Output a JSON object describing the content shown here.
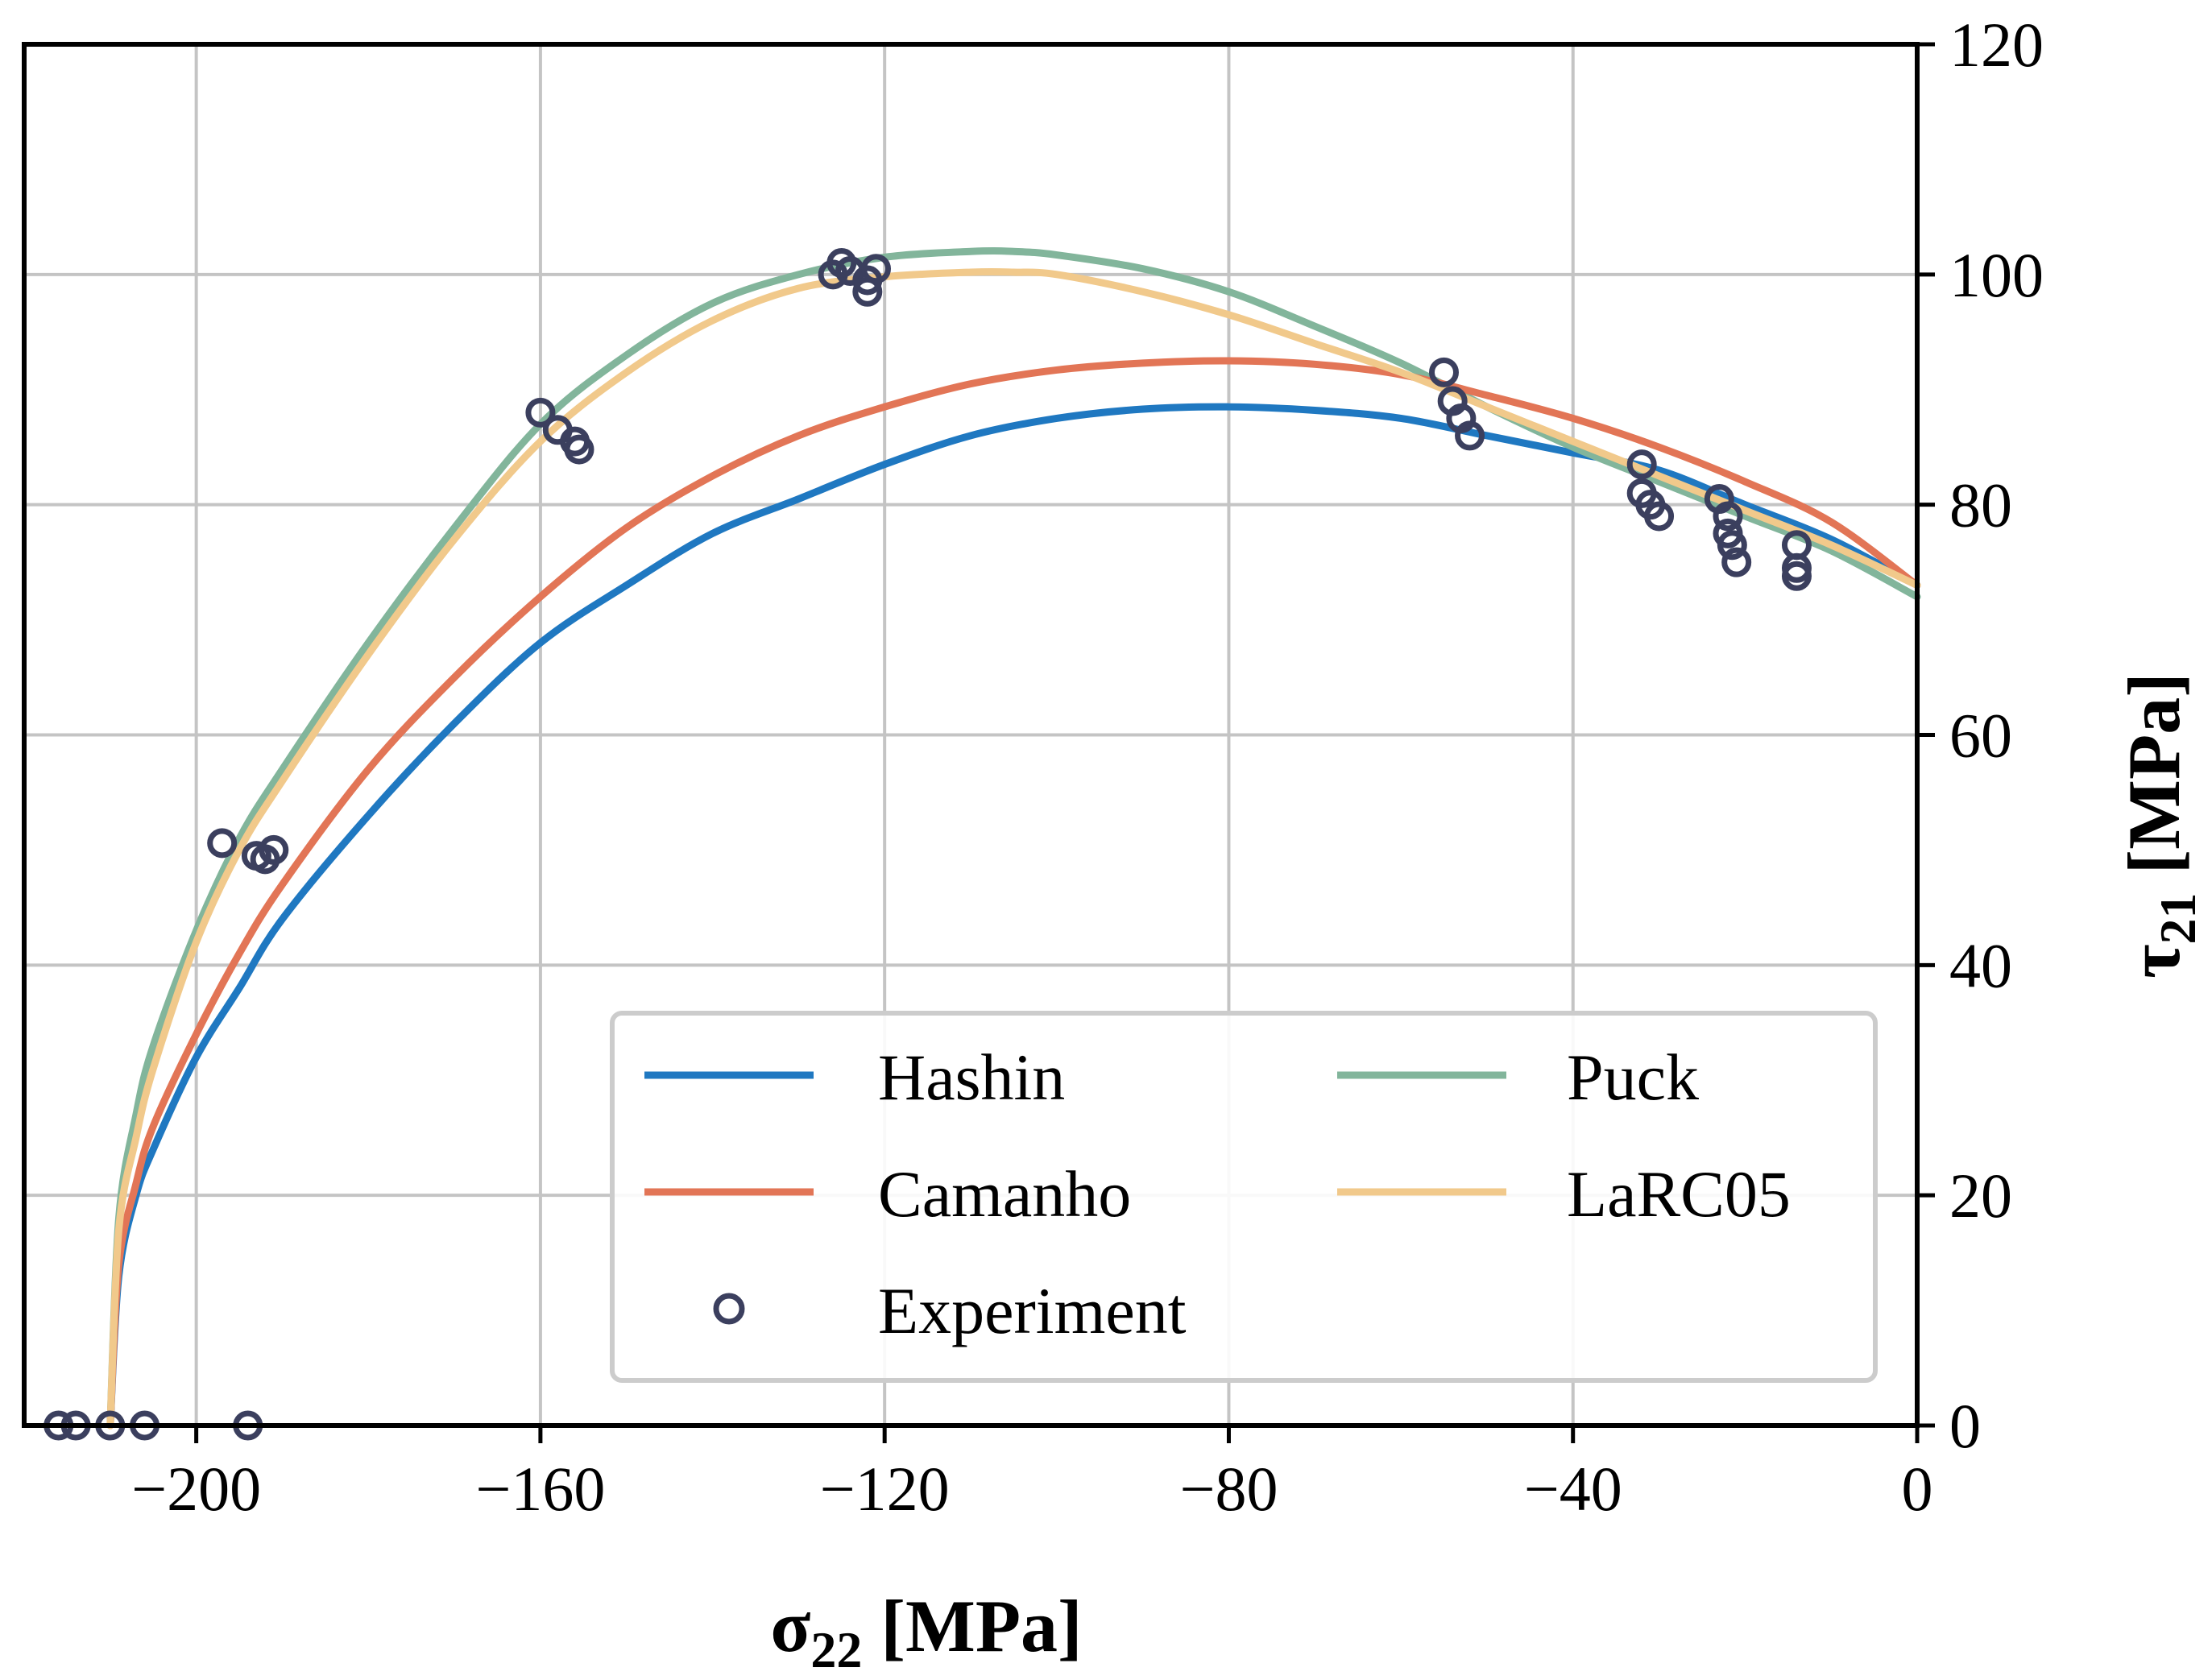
{
  "chart_data": {
    "type": "line",
    "xlabel": "σ",
    "xlabel_sub": "22",
    "xlabel_unit": " [MPa]",
    "ylabel": "τ",
    "ylabel_sub": "21",
    "ylabel_unit": " [MPa]",
    "xlim": [
      -220,
      0
    ],
    "ylim": [
      0,
      120
    ],
    "xticks": [
      -200,
      -160,
      -120,
      -80,
      -40,
      0
    ],
    "xtick_labels": [
      "−200",
      "−160",
      "−120",
      "−80",
      "−40",
      "0"
    ],
    "yticks": [
      0,
      20,
      40,
      60,
      80,
      100,
      120
    ],
    "ytick_labels": [
      "0",
      "20",
      "40",
      "60",
      "80",
      "100",
      "120"
    ],
    "y_axis_side": "right",
    "grid": true,
    "legend_position": "lower-right",
    "legend_columns": 2,
    "series": [
      {
        "name": "Hashin",
        "color": "#1f78c1",
        "x": [
          -210,
          -209,
          -207,
          -205,
          -200,
          -195,
          -190,
          -180,
          -170,
          -160,
          -150,
          -140,
          -130,
          -120,
          -110,
          -100,
          -90,
          -80,
          -70,
          -60,
          -50,
          -40,
          -30,
          -20,
          -10,
          0
        ],
        "y": [
          0,
          13,
          20,
          24,
          32,
          38,
          44,
          53,
          61,
          68,
          73,
          77.5,
          80.5,
          83.5,
          86,
          87.5,
          88.3,
          88.5,
          88.2,
          87.5,
          86,
          84.5,
          83,
          80,
          77,
          73
        ]
      },
      {
        "name": "Puck",
        "color": "#82b59b",
        "x": [
          -210,
          -209,
          -207,
          -205,
          -200,
          -195,
          -190,
          -180,
          -170,
          -160,
          -150,
          -140,
          -130,
          -120,
          -110,
          -105,
          -100,
          -90,
          -80,
          -70,
          -60,
          -50,
          -40,
          -30,
          -20,
          -10,
          0
        ],
        "y": [
          0,
          18,
          27,
          33,
          43,
          51,
          57,
          68,
          78,
          87,
          93,
          97.5,
          100,
          101.5,
          102,
          102,
          101.7,
          100.5,
          98.5,
          95.5,
          92.3,
          88.5,
          85,
          82,
          79,
          76,
          72
        ]
      },
      {
        "name": "Camanho",
        "color": "#e27556",
        "x": [
          -210,
          -209,
          -207,
          -205,
          -200,
          -195,
          -190,
          -180,
          -170,
          -160,
          -150,
          -140,
          -130,
          -120,
          -110,
          -100,
          -90,
          -80,
          -70,
          -60,
          -50,
          -40,
          -30,
          -20,
          -10,
          0
        ],
        "y": [
          0,
          14,
          21,
          26,
          34,
          41,
          47,
          57,
          65,
          72,
          78,
          82.5,
          86,
          88.5,
          90.5,
          91.7,
          92.3,
          92.5,
          92.2,
          91.3,
          89.5,
          87.5,
          85,
          82,
          78.5,
          73
        ]
      },
      {
        "name": "LaRC05",
        "color": "#f1c98b",
        "x": [
          -210,
          -209,
          -207,
          -205,
          -200,
          -195,
          -190,
          -180,
          -170,
          -160,
          -150,
          -140,
          -130,
          -120,
          -110,
          -105,
          -100,
          -90,
          -80,
          -70,
          -60,
          -50,
          -40,
          -30,
          -20,
          -10,
          0
        ],
        "y": [
          0,
          17,
          25,
          31,
          42,
          50,
          56,
          67,
          77,
          85.5,
          91.5,
          96,
          98.8,
          99.8,
          100.2,
          100.2,
          100,
          98.5,
          96.5,
          94,
          91.5,
          88.5,
          85.5,
          82.5,
          79.5,
          76.5,
          73
        ]
      }
    ],
    "experiment": {
      "name": "Experiment",
      "color": "#3b3f5e",
      "points": [
        [
          -216,
          0
        ],
        [
          -214,
          0
        ],
        [
          -210,
          0
        ],
        [
          -206,
          0
        ],
        [
          -194,
          0
        ],
        [
          -197,
          50.6
        ],
        [
          -193,
          49.5
        ],
        [
          -192,
          49.2
        ],
        [
          -191,
          50
        ],
        [
          -160,
          88
        ],
        [
          -158,
          86.5
        ],
        [
          -156,
          85.5
        ],
        [
          -155.5,
          84.8
        ],
        [
          -126,
          100
        ],
        [
          -125,
          101
        ],
        [
          -124,
          100.3
        ],
        [
          -122,
          99.5
        ],
        [
          -122,
          98.5
        ],
        [
          -121,
          100.5
        ],
        [
          -55,
          91.5
        ],
        [
          -54,
          89
        ],
        [
          -53,
          87.5
        ],
        [
          -52,
          86
        ],
        [
          -32,
          83.5
        ],
        [
          -32,
          81
        ],
        [
          -31,
          80
        ],
        [
          -30,
          79
        ],
        [
          -23,
          80.5
        ],
        [
          -22,
          79
        ],
        [
          -22,
          77.5
        ],
        [
          -21.5,
          76.5
        ],
        [
          -21,
          75
        ],
        [
          -14,
          76.5
        ],
        [
          -14,
          74.5
        ],
        [
          -14,
          73.8
        ]
      ]
    }
  }
}
